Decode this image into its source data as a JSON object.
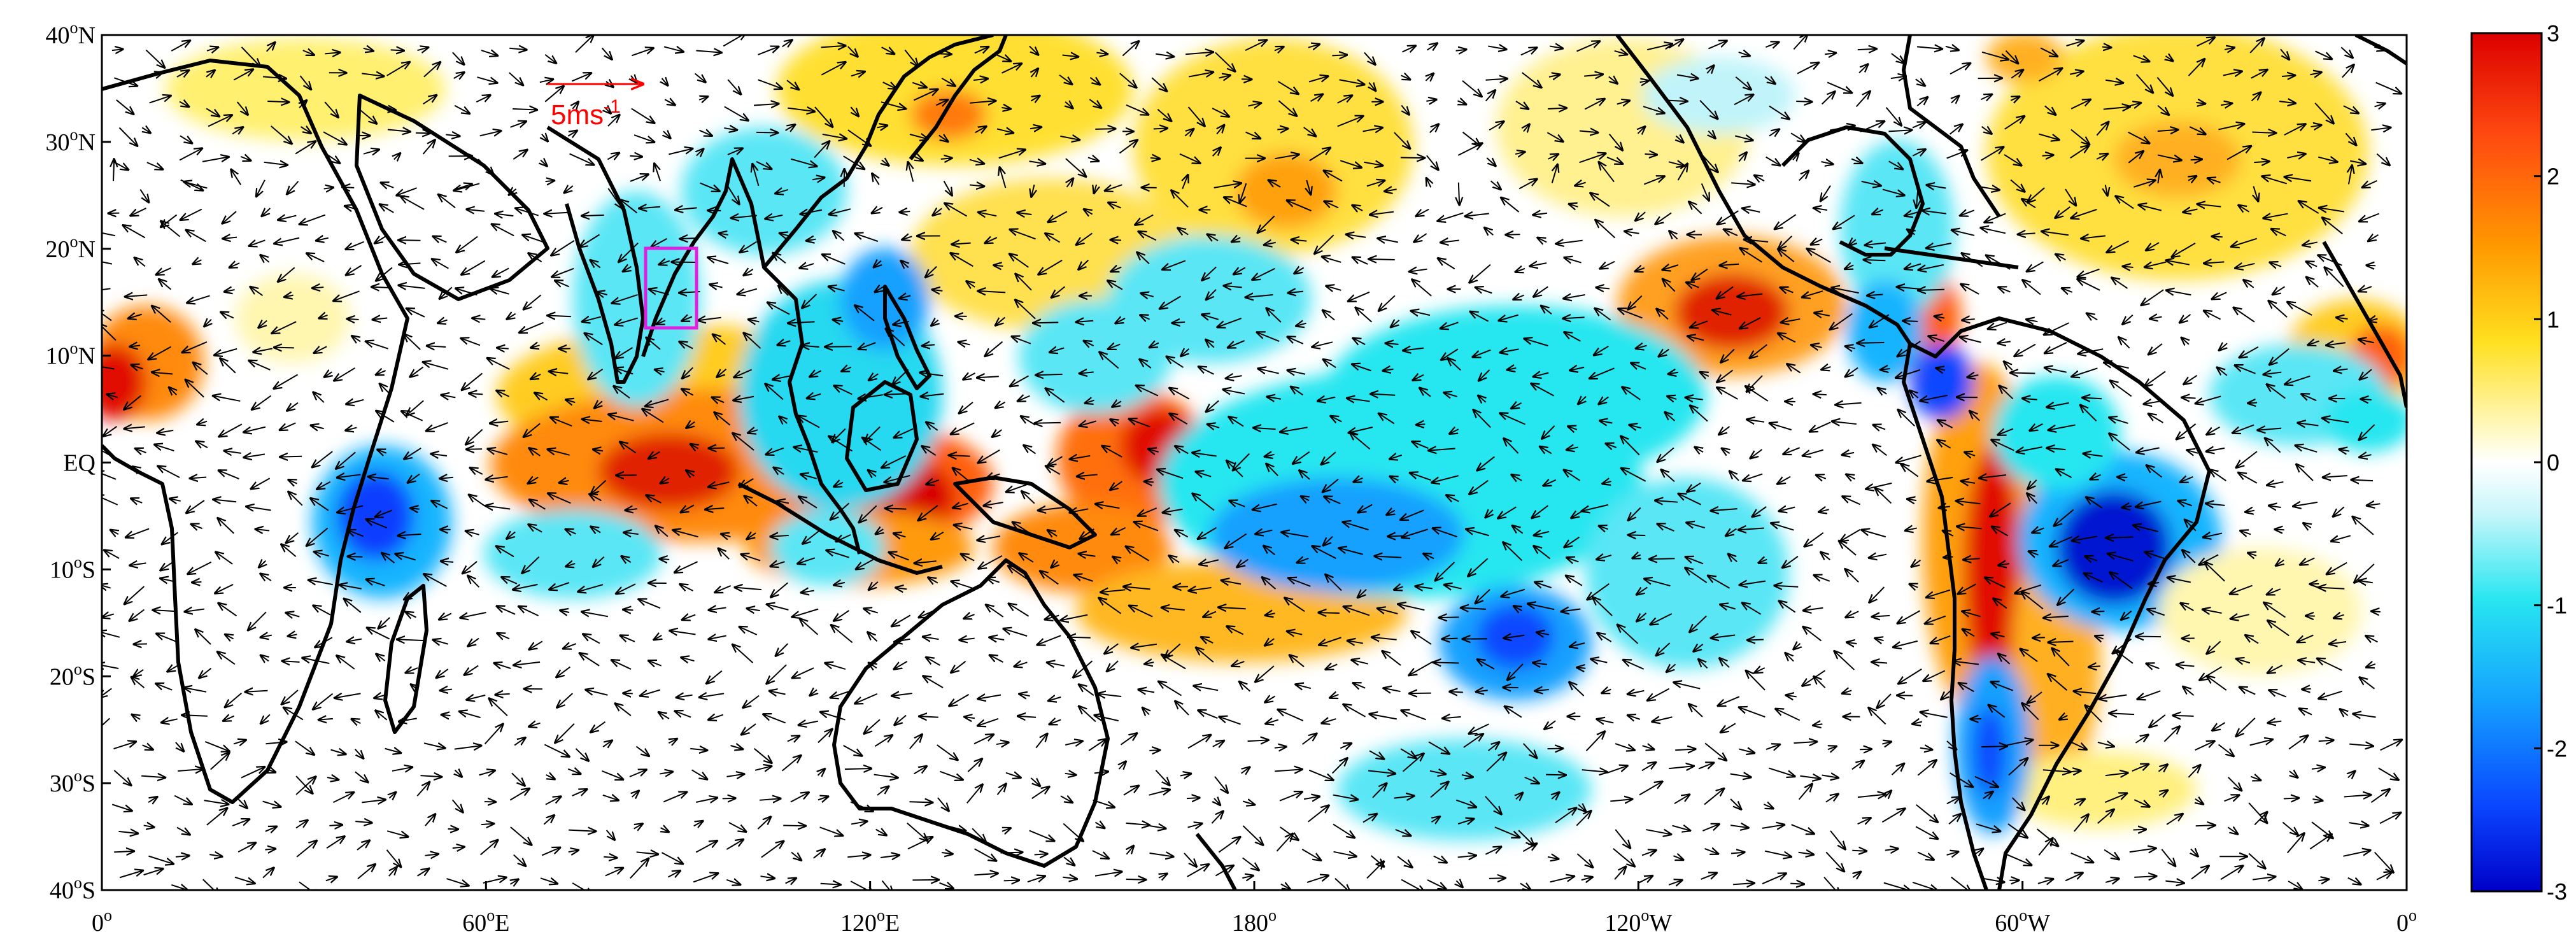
{
  "map": {
    "lat_labels": [
      "40°N",
      "30°N",
      "20°N",
      "10°N",
      "EQ",
      "10°S",
      "20°S",
      "30°S",
      "40°S"
    ],
    "lon_labels": [
      "0°",
      "60°E",
      "120°E",
      "180°",
      "120°W",
      "60°W",
      "0°"
    ],
    "reference_vector_label": "5ms",
    "reference_vector_exponent": "-1",
    "box_color": "#e020e0",
    "reference_color": "#ff0000",
    "lon_range": [
      0,
      360
    ],
    "lat_range": [
      -40,
      40
    ]
  },
  "colorbar": {
    "ticks": [
      "3",
      "2",
      "1",
      "0",
      "-1",
      "-2",
      "-3"
    ],
    "range": [
      -3,
      3
    ],
    "colors": [
      "#0000c8",
      "#0a46ff",
      "#14b4ff",
      "#28e6f0",
      "#ffffff",
      "#fff5b4",
      "#ffee30",
      "#ffb400",
      "#ff6414",
      "#dc0000"
    ]
  }
}
